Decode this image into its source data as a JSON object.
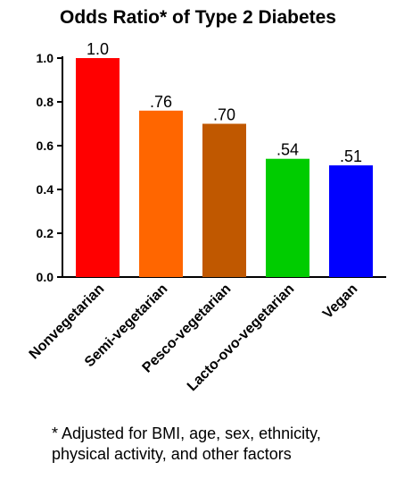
{
  "chart_data": {
    "type": "bar",
    "title": "Odds Ratio* of Type 2 Diabetes",
    "categories": [
      "Nonvegetarian",
      "Semi-vegetarian",
      "Pesco-vegetarian",
      "Lacto-ovo-vegetarian",
      "Vegan"
    ],
    "values": [
      1.0,
      0.76,
      0.7,
      0.54,
      0.51
    ],
    "data_labels": [
      "1.0",
      ".76",
      ".70",
      ".54",
      ".51"
    ],
    "colors": [
      "#ff0000",
      "#ff6600",
      "#c05800",
      "#00cc00",
      "#0000ff"
    ],
    "ylim": [
      0,
      1.0
    ],
    "yticks": [
      0.0,
      0.2,
      0.4,
      0.6,
      0.8,
      1.0
    ],
    "ytick_labels": [
      "0.0",
      "0.2",
      "0.4",
      "0.6",
      "0.8",
      "1.0"
    ],
    "xlabel": "",
    "ylabel": "",
    "grid": false,
    "footnote_lines": [
      "* Adjusted for BMI, age, sex, ethnicity,",
      "physical activity, and other factors"
    ]
  }
}
